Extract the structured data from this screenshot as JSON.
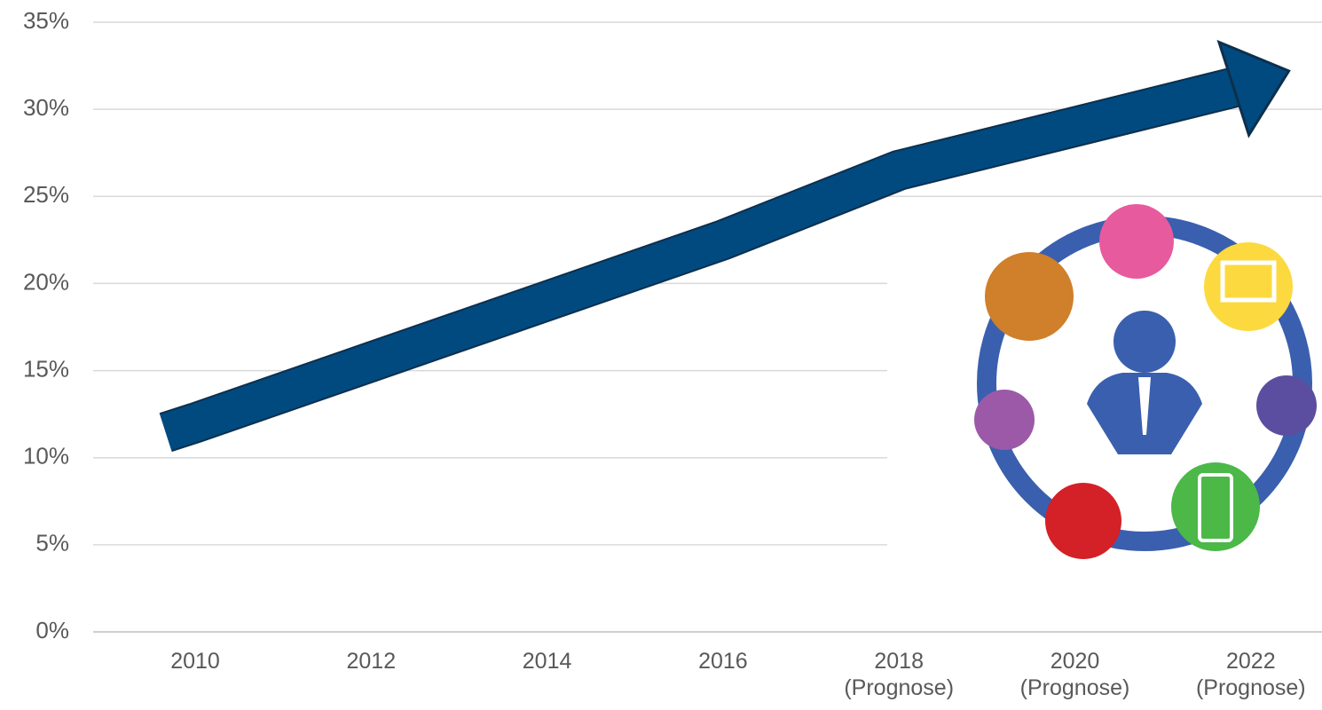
{
  "chart_data": {
    "type": "line",
    "categories": [
      "2010",
      "2012",
      "2014",
      "2016",
      "2018\n(Prognose)",
      "2020\n(Prognose)",
      "2022\n(Prognose)"
    ],
    "series": [
      {
        "color": "#004a80",
        "values": [
          12,
          15.5,
          19,
          22.5,
          26.5,
          29,
          31.5
        ]
      }
    ],
    "ylim": [
      0,
      35
    ],
    "yticks": [
      {
        "value": 0,
        "label": "0%"
      },
      {
        "value": 5,
        "label": "5%"
      },
      {
        "value": 10,
        "label": "10%"
      },
      {
        "value": 15,
        "label": "15%"
      },
      {
        "value": 20,
        "label": "20%"
      },
      {
        "value": 25,
        "label": "25%"
      },
      {
        "value": 30,
        "label": "30%"
      },
      {
        "value": 35,
        "label": "35%"
      }
    ],
    "grid": true
  }
}
